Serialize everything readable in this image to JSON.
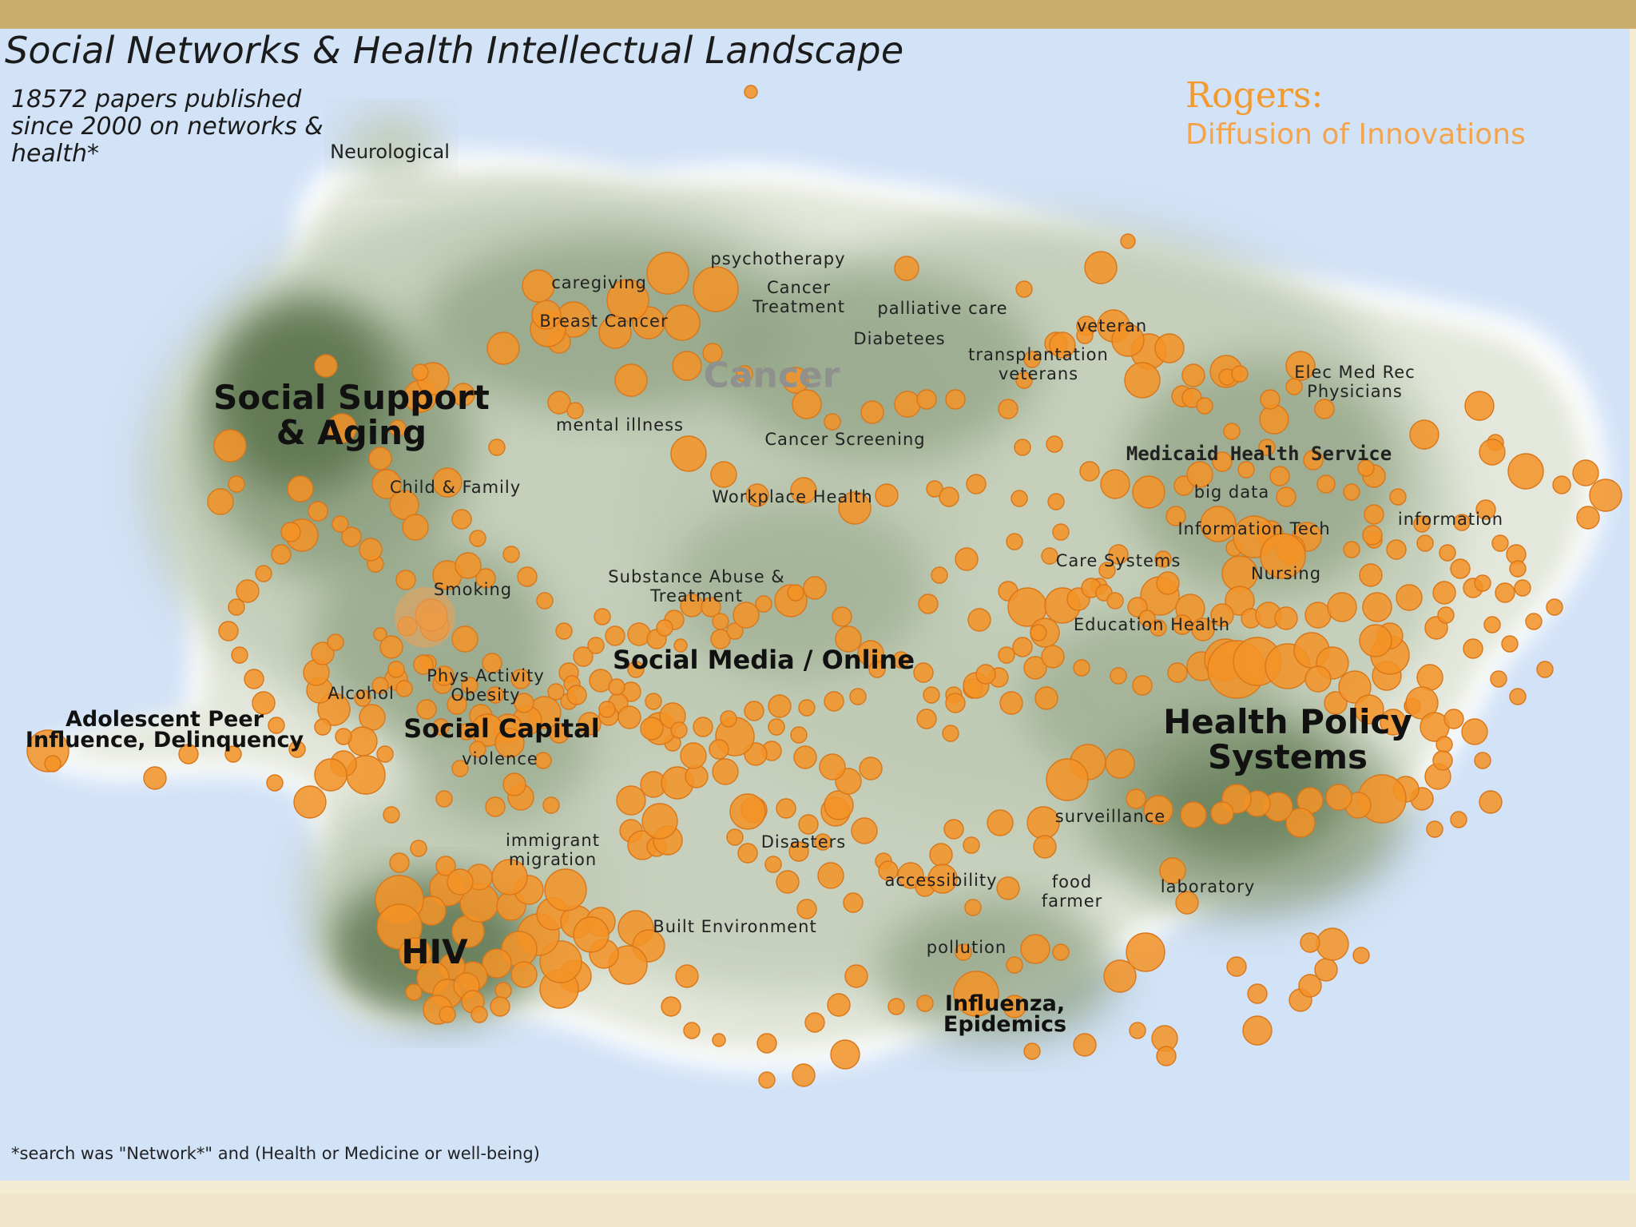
{
  "title": "Social Networks & Health Intellectual Landscape",
  "subtitle": "18572 papers published since 2000 on networks & health*",
  "rogers": {
    "name": "Rogers:",
    "theory": "Diffusion of Innovations"
  },
  "footnote": "*search was \"Network*\" and (Health or Medicine or well-being)",
  "colors": {
    "ocean": "#d2e2f7",
    "shore": "#ffffff",
    "land_light": "#e4e8dc",
    "land_mid": "#c0cbb5",
    "land_dark": "#8fa182",
    "land_deep": "#5d7650",
    "node_fill": "#f39326",
    "node_stroke": "#d9771a",
    "accent": "#f29a2e",
    "top_bar": "#c8ad6c"
  },
  "labels": [
    {
      "id": "neurological",
      "text": "Neurological",
      "style": "lbl-m"
    },
    {
      "id": "psychotherapy",
      "text": "psychotherapy",
      "style": "lbl-s"
    },
    {
      "id": "caregiving",
      "text": "caregiving",
      "style": "lbl-s"
    },
    {
      "id": "cancer-treatment",
      "text": "Cancer\nTreatment",
      "style": "lbl-s"
    },
    {
      "id": "palliative-care",
      "text": "palliative care",
      "style": "lbl-s"
    },
    {
      "id": "breast-cancer",
      "text": "Breast Cancer",
      "style": "lbl-s"
    },
    {
      "id": "diabetes",
      "text": "Diabetees",
      "style": "lbl-s"
    },
    {
      "id": "veteran",
      "text": "veteran",
      "style": "lbl-s"
    },
    {
      "id": "transplantation",
      "text": "transplantation\nveterans",
      "style": "lbl-s"
    },
    {
      "id": "cancer",
      "text": "Cancer",
      "style": "lbl-cancer"
    },
    {
      "id": "med-rec",
      "text": "Elec Med Rec\nPhysicians",
      "style": "lbl-s"
    },
    {
      "id": "social-support",
      "text": "Social Support\n& Aging",
      "style": "lbl-b"
    },
    {
      "id": "mental-illness",
      "text": "mental illness",
      "style": "lbl-s"
    },
    {
      "id": "cancer-screening",
      "text": "Cancer Screening",
      "style": "lbl-s"
    },
    {
      "id": "medicaid",
      "text": "Medicaid Health Service",
      "style": "lbl-mono"
    },
    {
      "id": "child-family",
      "text": "Child & Family",
      "style": "lbl-s"
    },
    {
      "id": "big-data",
      "text": "big data",
      "style": "lbl-s"
    },
    {
      "id": "workplace-health",
      "text": "Workplace Health",
      "style": "lbl-s"
    },
    {
      "id": "information-right",
      "text": "information",
      "style": "lbl-s"
    },
    {
      "id": "information-tech",
      "text": "Information Tech",
      "style": "lbl-s"
    },
    {
      "id": "care-systems",
      "text": "Care Systems",
      "style": "lbl-s"
    },
    {
      "id": "substance-abuse",
      "text": "Substance Abuse &\nTreatment",
      "style": "lbl-s"
    },
    {
      "id": "nursing",
      "text": "Nursing",
      "style": "lbl-s"
    },
    {
      "id": "smoking",
      "text": "Smoking",
      "style": "lbl-s"
    },
    {
      "id": "education-health",
      "text": "Education Health",
      "style": "lbl-s"
    },
    {
      "id": "social-media",
      "text": "Social Media / Online",
      "style": "lbl-bm"
    },
    {
      "id": "physical-activity",
      "text": "Phys Activity\nObesity",
      "style": "lbl-s"
    },
    {
      "id": "alcohol",
      "text": "Alcohol",
      "style": "lbl-s"
    },
    {
      "id": "adolescent",
      "text": "Adolescent Peer\nInfluence, Delinquency",
      "style": "lbl-bs"
    },
    {
      "id": "social-capital",
      "text": "Social Capital",
      "style": "lbl-bm"
    },
    {
      "id": "violence",
      "text": "violence",
      "style": "lbl-s"
    },
    {
      "id": "health-policy",
      "text": "Health Policy\nSystems",
      "style": "lbl-b"
    },
    {
      "id": "surveillance",
      "text": "surveillance",
      "style": "lbl-s"
    },
    {
      "id": "immigrant",
      "text": "immigrant\nmigration",
      "style": "lbl-s"
    },
    {
      "id": "disasters",
      "text": "Disasters",
      "style": "lbl-s"
    },
    {
      "id": "accessibility",
      "text": "accessibility",
      "style": "lbl-s"
    },
    {
      "id": "food-farmer",
      "text": "food\nfarmer",
      "style": "lbl-s"
    },
    {
      "id": "laboratory",
      "text": "laboratory",
      "style": "lbl-s"
    },
    {
      "id": "built-environment",
      "text": "Built Environment",
      "style": "lbl-s"
    },
    {
      "id": "pollution",
      "text": "pollution",
      "style": "lbl-s"
    },
    {
      "id": "hiv",
      "text": "HIV",
      "style": "lbl-b"
    },
    {
      "id": "influenza",
      "text": "Influenza,\nEpidemics",
      "style": "lbl-bs"
    }
  ]
}
